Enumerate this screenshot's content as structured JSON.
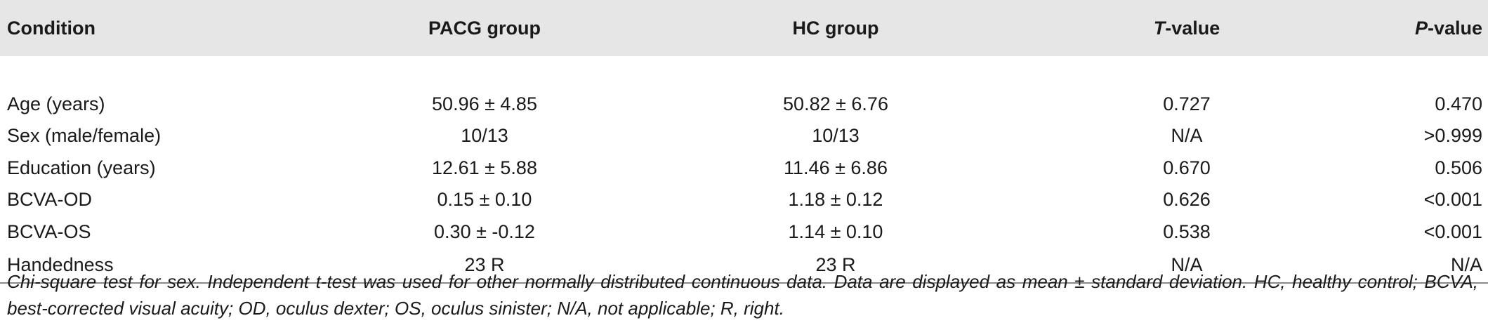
{
  "table": {
    "headers": [
      {
        "pre": "",
        "em": "",
        "post": "Condition"
      },
      {
        "pre": "",
        "em": "",
        "post": "PACG group"
      },
      {
        "pre": "",
        "em": "",
        "post": "HC group"
      },
      {
        "pre": "",
        "em": "T",
        "post": "-value"
      },
      {
        "pre": "",
        "em": "P",
        "post": "-value"
      }
    ],
    "rows": [
      [
        "Age (years)",
        "50.96 ± 4.85",
        "50.82 ± 6.76",
        "0.727",
        "0.470"
      ],
      [
        "Sex (male/female)",
        "10/13",
        "10/13",
        "N/A",
        ">0.999"
      ],
      [
        "Education (years)",
        "12.61 ± 5.88",
        "11.46 ± 6.86",
        "0.670",
        "0.506"
      ],
      [
        "BCVA-OD",
        "0.15 ± 0.10",
        "1.18 ± 0.12",
        "0.626",
        "<0.001"
      ],
      [
        "BCVA-OS",
        "0.30 ± -0.12",
        "1.14 ± 0.10",
        "0.538",
        "<0.001"
      ],
      [
        "Handedness",
        "23 R",
        "23 R",
        "N/A",
        "N/A"
      ]
    ]
  },
  "footnote": "Chi-square test for sex. Independent t-test was used for other normally distributed continuous data. Data are displayed as mean ± standard deviation. HC, healthy control; BCVA, best-corrected visual acuity; OD, oculus dexter; OS, oculus sinister; N/A, not applicable; R, right."
}
